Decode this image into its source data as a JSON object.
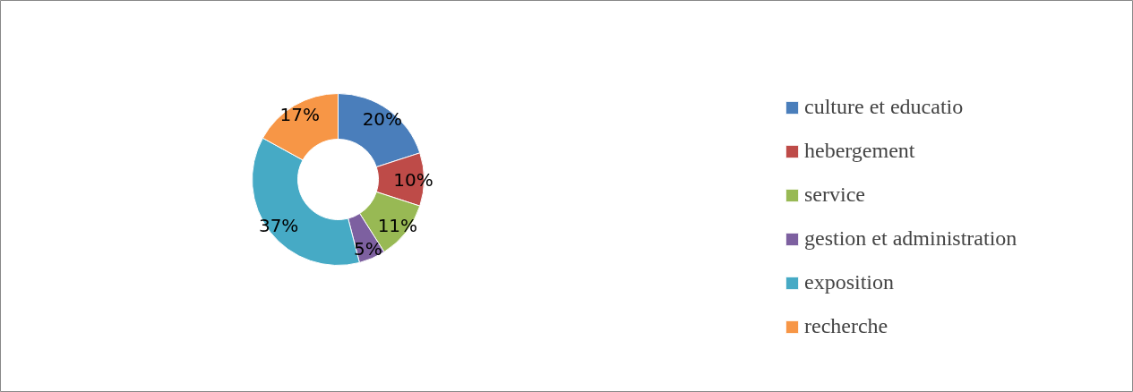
{
  "chart_data": {
    "type": "donut",
    "categories": [
      "culture et educatio",
      "hebergement",
      "service",
      "gestion et administration",
      "exposition",
      "recherche"
    ],
    "values": [
      20,
      10,
      11,
      5,
      37,
      17
    ],
    "value_labels": [
      "20%",
      "10%",
      "11%",
      "5%",
      "37%",
      "17%"
    ],
    "colors": [
      "#4a7ebb",
      "#be4b48",
      "#98b954",
      "#7d60a0",
      "#46aac5",
      "#f79646"
    ],
    "legend": "right"
  }
}
